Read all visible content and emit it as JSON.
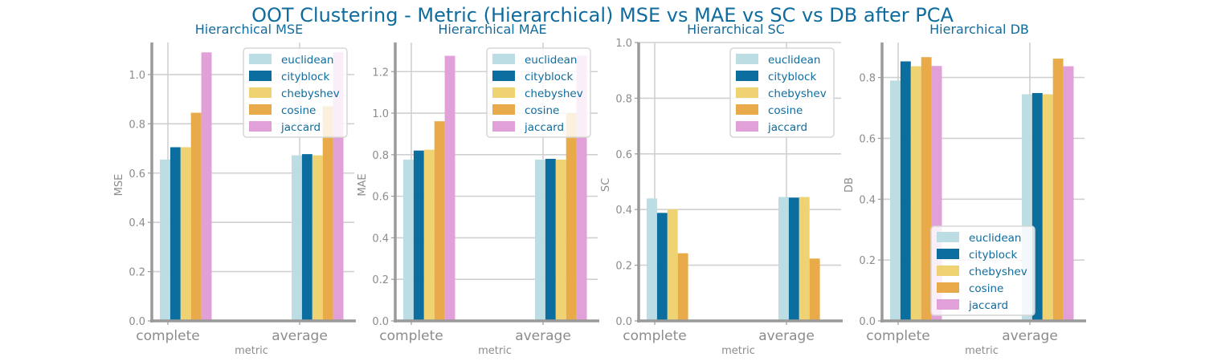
{
  "figure": {
    "title": "OOT Clustering - Metric (Hierarchical) MSE vs MAE vs SC vs DB after PCA",
    "colors": {
      "euclidean": "#bcdde3",
      "cityblock": "#0c6e9f",
      "chebyshev": "#efd372",
      "cosine": "#e9ab4a",
      "jaccard": "#e1a0d7",
      "title_text": "#0f6c9e",
      "axis_text": "#8c8c8c",
      "spine": "#9a9a9a",
      "grid": "#d0d0d0"
    }
  },
  "chart_data": [
    {
      "type": "bar",
      "title": "Hierarchical MSE",
      "xlabel": "metric",
      "ylabel": "MSE",
      "categories": [
        "complete",
        "average"
      ],
      "ylim": [
        0,
        1.13
      ],
      "yticks": [
        0.0,
        0.2,
        0.4,
        0.6,
        0.8,
        1.0
      ],
      "ytick_labels": [
        "0.0",
        "0.2",
        "0.4",
        "0.6",
        "0.8",
        "1.0"
      ],
      "grid": true,
      "legend": "top-right",
      "series": [
        {
          "name": "euclidean",
          "values": [
            0.655,
            0.672
          ]
        },
        {
          "name": "cityblock",
          "values": [
            0.705,
            0.677
          ]
        },
        {
          "name": "chebyshev",
          "values": [
            0.705,
            0.672
          ]
        },
        {
          "name": "cosine",
          "values": [
            0.845,
            0.872
          ]
        },
        {
          "name": "jaccard",
          "values": [
            1.09,
            1.09
          ]
        }
      ]
    },
    {
      "type": "bar",
      "title": "Hierarchical MAE",
      "xlabel": "metric",
      "ylabel": "MAE",
      "categories": [
        "complete",
        "average"
      ],
      "ylim": [
        0,
        1.34
      ],
      "yticks": [
        0.0,
        0.2,
        0.4,
        0.6,
        0.8,
        1.0,
        1.2
      ],
      "ytick_labels": [
        "0.0",
        "0.2",
        "0.4",
        "0.6",
        "0.8",
        "1.0",
        "1.2"
      ],
      "grid": true,
      "legend": "top-right",
      "series": [
        {
          "name": "euclidean",
          "values": [
            0.776,
            0.776
          ]
        },
        {
          "name": "cityblock",
          "values": [
            0.82,
            0.78
          ]
        },
        {
          "name": "chebyshev",
          "values": [
            0.824,
            0.776
          ]
        },
        {
          "name": "cosine",
          "values": [
            0.961,
            1.0
          ]
        },
        {
          "name": "jaccard",
          "values": [
            1.276,
            1.276
          ]
        }
      ]
    },
    {
      "type": "bar",
      "title": "Hierarchical SC",
      "xlabel": "metric",
      "ylabel": "SC",
      "categories": [
        "complete",
        "average"
      ],
      "ylim": [
        0,
        1.0
      ],
      "yticks": [
        0.0,
        0.2,
        0.4,
        0.6,
        0.8,
        1.0
      ],
      "ytick_labels": [
        "0.0",
        "0.2",
        "0.4",
        "0.6",
        "0.8",
        "1.0"
      ],
      "grid": true,
      "legend": "top-right",
      "series": [
        {
          "name": "euclidean",
          "values": [
            0.44,
            0.445
          ]
        },
        {
          "name": "cityblock",
          "values": [
            0.388,
            0.443
          ]
        },
        {
          "name": "chebyshev",
          "values": [
            0.401,
            0.445
          ]
        },
        {
          "name": "cosine",
          "values": [
            0.243,
            0.224
          ]
        },
        {
          "name": "jaccard",
          "values": [
            0.0,
            0.0
          ]
        }
      ]
    },
    {
      "type": "bar",
      "title": "Hierarchical DB",
      "xlabel": "metric",
      "ylabel": "DB",
      "categories": [
        "complete",
        "average"
      ],
      "ylim": [
        0,
        0.915
      ],
      "yticks": [
        0.0,
        0.2,
        0.4,
        0.6,
        0.8
      ],
      "ytick_labels": [
        "0.0",
        "0.2",
        "0.4",
        "0.6",
        "0.8"
      ],
      "grid": true,
      "legend": "bottom-right",
      "series": [
        {
          "name": "euclidean",
          "values": [
            0.79,
            0.745
          ]
        },
        {
          "name": "cityblock",
          "values": [
            0.853,
            0.749
          ]
        },
        {
          "name": "chebyshev",
          "values": [
            0.837,
            0.745
          ]
        },
        {
          "name": "cosine",
          "values": [
            0.867,
            0.862
          ]
        },
        {
          "name": "jaccard",
          "values": [
            0.838,
            0.837
          ]
        }
      ]
    }
  ]
}
